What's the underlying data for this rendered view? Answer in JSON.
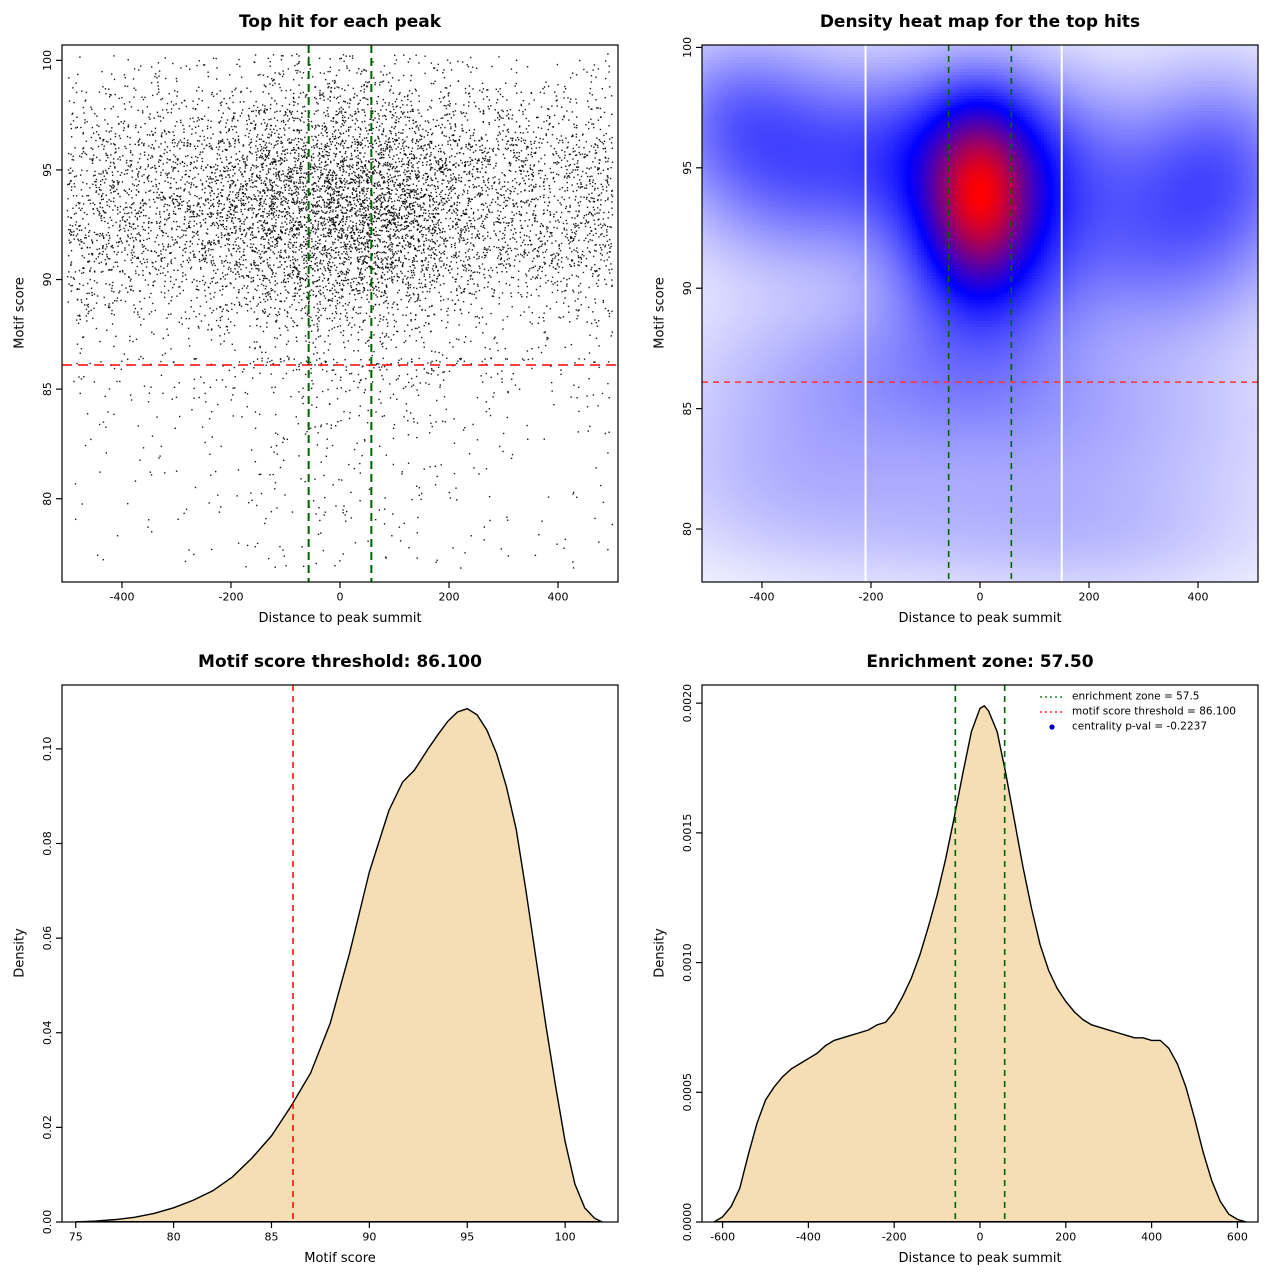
{
  "figure": {
    "background": "#FFFFFF",
    "motif_score_threshold": 86.1,
    "enrichment_zone": 57.5,
    "centrality_pval": -0.2237
  },
  "chart_data": [
    {
      "id": "top-hits-scatter",
      "type": "scatter",
      "title": "Top hit for each peak",
      "xlabel": "Distance to peak summit",
      "ylabel": "Motif score",
      "xlim": [
        -510,
        510
      ],
      "ylim": [
        76.2,
        100.7
      ],
      "xtick_vals": [
        -400,
        -200,
        0,
        200,
        400
      ],
      "xtick_labels": [
        "-400",
        "-200",
        "0",
        "200",
        "400"
      ],
      "ytick_vals": [
        80,
        85,
        90,
        95,
        100
      ],
      "ytick_labels": [
        "80",
        "85",
        "90",
        "95",
        "100"
      ],
      "point_color": "#000000",
      "point_size": 1.4,
      "gen": {
        "seed": 1234,
        "n": 9000,
        "x_uniform_frac": 0.62,
        "x_min": -500,
        "x_max": 500,
        "x_core_sd": 135,
        "y_mean": 93.4,
        "y_sd": 3.1,
        "y_max": 100.3,
        "y_min": 76.5,
        "tail_frac": 0.055,
        "tail_top": 86.4,
        "tail_bottom": 76.8
      },
      "hlines": [
        {
          "y": 86.1,
          "color": "#FF0000",
          "dash": [
            10,
            6
          ],
          "width": 1.6
        }
      ],
      "vlines": [
        {
          "x": -57.5,
          "color": "#006400",
          "dash": [
            8,
            5
          ],
          "width": 2.0
        },
        {
          "x": 57.5,
          "color": "#006400",
          "dash": [
            8,
            5
          ],
          "width": 2.0
        }
      ]
    },
    {
      "id": "density-heatmap",
      "type": "heatmap",
      "title": "Density heat map for the top hits",
      "xlabel": "Distance to peak summit",
      "ylabel": "Motif score",
      "xlim": [
        -510,
        510
      ],
      "ylim": [
        77.8,
        100.1
      ],
      "xtick_vals": [
        -400,
        -200,
        0,
        200,
        400
      ],
      "xtick_labels": [
        "-400",
        "-200",
        "0",
        "200",
        "400"
      ],
      "ytick_vals": [
        80,
        85,
        90,
        95,
        100
      ],
      "ytick_labels": [
        "80",
        "85",
        "90",
        "95",
        "100"
      ],
      "colormap": [
        [
          0,
          "#FFFFFF"
        ],
        [
          0.5,
          "#0000FF"
        ],
        [
          1,
          "#FF0000"
        ]
      ],
      "gamma": 0.65,
      "components": [
        {
          "x": 0,
          "y": 93.8,
          "sx": 58,
          "sy": 2.2,
          "w": 1.0
        },
        {
          "x": 10,
          "y": 92.6,
          "sx": 110,
          "sy": 3.3,
          "w": 0.6
        },
        {
          "x": -30,
          "y": 95.6,
          "sx": 150,
          "sy": 2.1,
          "w": 0.35
        },
        {
          "x": -330,
          "y": 95.2,
          "sx": 130,
          "sy": 2.6,
          "w": 0.3
        },
        {
          "x": 330,
          "y": 92.8,
          "sx": 140,
          "sy": 3.0,
          "w": 0.3
        },
        {
          "x": 450,
          "y": 95.2,
          "sx": 90,
          "sy": 2.4,
          "w": 0.2
        },
        {
          "x": -450,
          "y": 97.2,
          "sx": 90,
          "sy": 2.0,
          "w": 0.18
        },
        {
          "x": -150,
          "y": 86.6,
          "sx": 220,
          "sy": 2.2,
          "w": 0.13
        },
        {
          "x": 140,
          "y": 84.2,
          "sx": 260,
          "sy": 2.4,
          "w": 0.1
        },
        {
          "x": -350,
          "y": 82.5,
          "sx": 160,
          "sy": 2.2,
          "w": 0.07
        },
        {
          "x": 240,
          "y": 79.8,
          "sx": 200,
          "sy": 1.8,
          "w": 0.05
        },
        {
          "x": -80,
          "y": 80.2,
          "sx": 250,
          "sy": 1.8,
          "w": 0.05
        }
      ],
      "white_lines_x": [
        -210,
        150
      ],
      "hlines": [
        {
          "y": 86.1,
          "color": "#FF3333",
          "dash": [
            6,
            5
          ],
          "width": 1.4
        }
      ],
      "vlines": [
        {
          "x": -57.5,
          "color": "#006400",
          "dash": [
            6,
            5
          ],
          "width": 1.6
        },
        {
          "x": 57.5,
          "color": "#006400",
          "dash": [
            6,
            5
          ],
          "width": 1.6
        }
      ]
    },
    {
      "id": "motif-score-density",
      "type": "area",
      "title": "Motif score threshold: 86.100",
      "xlabel": "Motif score",
      "ylabel": "Density",
      "xlim": [
        74.3,
        102.7
      ],
      "ylim": [
        0,
        0.1135
      ],
      "xtick_vals": [
        75,
        80,
        85,
        90,
        95,
        100
      ],
      "xtick_labels": [
        "75",
        "80",
        "85",
        "90",
        "95",
        "100"
      ],
      "ytick_vals": [
        0,
        0.02,
        0.04,
        0.06,
        0.08,
        0.1
      ],
      "ytick_labels": [
        "0.00",
        "0.02",
        "0.04",
        "0.06",
        "0.08",
        "0.10"
      ],
      "fill": "#F5DEB3",
      "stroke": "#000000",
      "curve": [
        [
          75,
          0
        ],
        [
          76,
          0.0002
        ],
        [
          77,
          0.0005
        ],
        [
          78,
          0.001
        ],
        [
          79,
          0.0018
        ],
        [
          80,
          0.003
        ],
        [
          81,
          0.0046
        ],
        [
          82,
          0.0066
        ],
        [
          83,
          0.0095
        ],
        [
          84,
          0.0135
        ],
        [
          85,
          0.0182
        ],
        [
          86,
          0.0245
        ],
        [
          87,
          0.0315
        ],
        [
          88,
          0.042
        ],
        [
          89,
          0.057
        ],
        [
          90,
          0.074
        ],
        [
          91,
          0.087
        ],
        [
          91.7,
          0.093
        ],
        [
          92.3,
          0.0955
        ],
        [
          93,
          0.1
        ],
        [
          93.5,
          0.103
        ],
        [
          94,
          0.1058
        ],
        [
          94.5,
          0.1078
        ],
        [
          95,
          0.1085
        ],
        [
          95.5,
          0.1072
        ],
        [
          96,
          0.104
        ],
        [
          96.5,
          0.099
        ],
        [
          97,
          0.092
        ],
        [
          97.5,
          0.083
        ],
        [
          98,
          0.07
        ],
        [
          98.5,
          0.056
        ],
        [
          99,
          0.042
        ],
        [
          99.5,
          0.029
        ],
        [
          100,
          0.017
        ],
        [
          100.5,
          0.008
        ],
        [
          101,
          0.003
        ],
        [
          101.5,
          0.0008
        ],
        [
          101.9,
          0
        ]
      ],
      "vlines": [
        {
          "x": 86.1,
          "color": "#FF0000",
          "dash": [
            6,
            5
          ],
          "width": 1.5
        }
      ]
    },
    {
      "id": "distance-density",
      "type": "area",
      "title": "Enrichment zone: 57.50",
      "xlabel": "Distance to peak summit",
      "ylabel": "Density",
      "xlim": [
        -648,
        648
      ],
      "ylim": [
        0,
        0.00207
      ],
      "xtick_vals": [
        -600,
        -400,
        -200,
        0,
        200,
        400,
        600
      ],
      "xtick_labels": [
        "-600",
        "-400",
        "-200",
        "0",
        "200",
        "400",
        "600"
      ],
      "ytick_vals": [
        0,
        0.0005,
        0.001,
        0.0015,
        0.002
      ],
      "ytick_labels": [
        "0.0000",
        "0.0005",
        "0.0010",
        "0.0015",
        "0.0020"
      ],
      "fill": "#F5DEB3",
      "stroke": "#000000",
      "curve": [
        [
          -620,
          0
        ],
        [
          -600,
          2e-05
        ],
        [
          -580,
          6e-05
        ],
        [
          -560,
          0.00013
        ],
        [
          -540,
          0.00026
        ],
        [
          -520,
          0.00038
        ],
        [
          -500,
          0.00047
        ],
        [
          -480,
          0.00052
        ],
        [
          -460,
          0.00056
        ],
        [
          -440,
          0.00059
        ],
        [
          -420,
          0.00061
        ],
        [
          -400,
          0.00063
        ],
        [
          -380,
          0.00065
        ],
        [
          -360,
          0.00068
        ],
        [
          -340,
          0.0007
        ],
        [
          -320,
          0.00071
        ],
        [
          -300,
          0.00072
        ],
        [
          -280,
          0.00073
        ],
        [
          -260,
          0.00074
        ],
        [
          -240,
          0.00076
        ],
        [
          -220,
          0.00077
        ],
        [
          -200,
          0.00081
        ],
        [
          -180,
          0.00087
        ],
        [
          -160,
          0.00094
        ],
        [
          -140,
          0.00103
        ],
        [
          -120,
          0.00114
        ],
        [
          -100,
          0.00126
        ],
        [
          -80,
          0.0014
        ],
        [
          -60,
          0.00156
        ],
        [
          -40,
          0.00173
        ],
        [
          -20,
          0.00189
        ],
        [
          0,
          0.00198
        ],
        [
          10,
          0.00199
        ],
        [
          20,
          0.00197
        ],
        [
          40,
          0.00189
        ],
        [
          60,
          0.00173
        ],
        [
          80,
          0.00155
        ],
        [
          100,
          0.00137
        ],
        [
          120,
          0.00121
        ],
        [
          140,
          0.00107
        ],
        [
          160,
          0.00097
        ],
        [
          180,
          0.0009
        ],
        [
          200,
          0.00085
        ],
        [
          220,
          0.00081
        ],
        [
          240,
          0.00078
        ],
        [
          260,
          0.00076
        ],
        [
          280,
          0.00075
        ],
        [
          300,
          0.00074
        ],
        [
          320,
          0.00073
        ],
        [
          340,
          0.00072
        ],
        [
          360,
          0.00071
        ],
        [
          380,
          0.00071
        ],
        [
          400,
          0.0007
        ],
        [
          420,
          0.0007
        ],
        [
          440,
          0.00067
        ],
        [
          460,
          0.00061
        ],
        [
          480,
          0.00052
        ],
        [
          500,
          0.0004
        ],
        [
          520,
          0.00027
        ],
        [
          540,
          0.00016
        ],
        [
          560,
          8e-05
        ],
        [
          580,
          3e-05
        ],
        [
          600,
          1e-05
        ],
        [
          620,
          0
        ]
      ],
      "vlines": [
        {
          "x": -57.5,
          "color": "#006400",
          "dash": [
            6,
            5
          ],
          "width": 1.6
        },
        {
          "x": 57.5,
          "color": "#006400",
          "dash": [
            6,
            5
          ],
          "width": 1.6
        }
      ],
      "legend": {
        "items": [
          {
            "label": "enrichment zone = 57.5",
            "color": "#006400",
            "type": "dotted-line"
          },
          {
            "label": "motif score threshold = 86.100",
            "color": "#FF0000",
            "type": "dotted-line"
          },
          {
            "label": "centrality p-val = -0.2237",
            "color": "#0000CD",
            "type": "point"
          }
        ]
      }
    }
  ]
}
